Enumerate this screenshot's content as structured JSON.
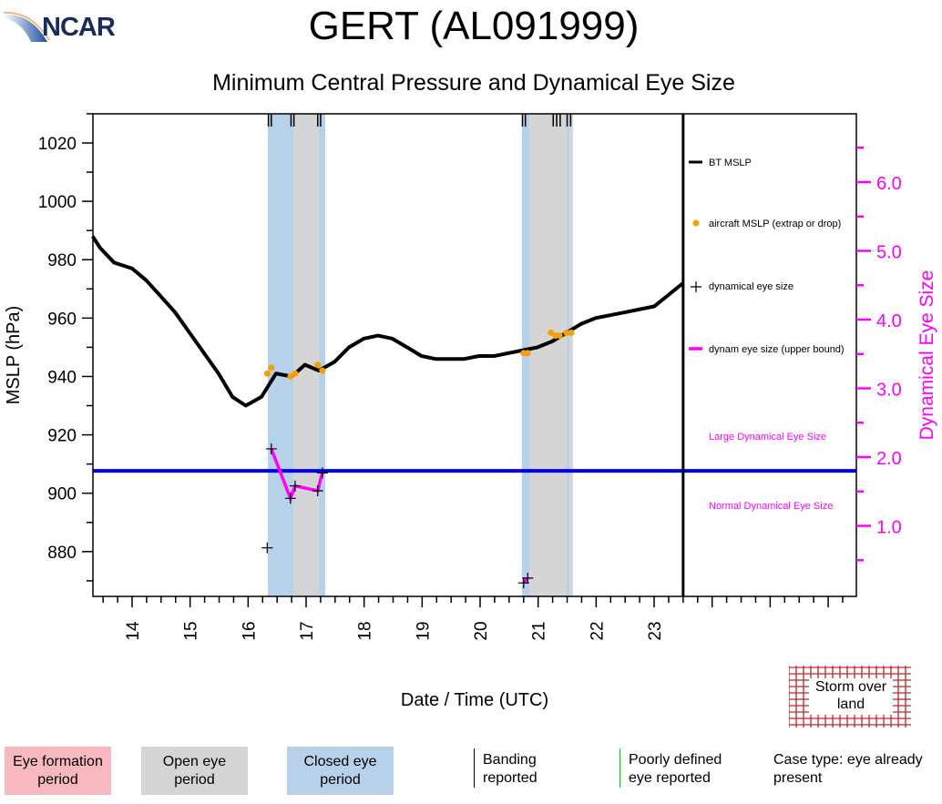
{
  "header": {
    "title": "GERT (AL091999)",
    "subtitle": "Minimum Central Pressure and Dynamical Eye Size",
    "logo_text": "NCAR"
  },
  "colors": {
    "bt": "#000000",
    "aircraft": "#f5a000",
    "eye_line": "#ff00ff",
    "threshold": "#0000ee",
    "closed": "#b8d1ea",
    "open": "#d5d5d5",
    "formation": "#f7b8c0",
    "land": "#c0272d",
    "banding": "#000000",
    "poorly": "#00cc00"
  },
  "chart_data": {
    "type": "line",
    "title": "Minimum Central Pressure and Dynamical Eye Size",
    "xlabel": "Date / Time (UTC)",
    "ylabel": "MSLP (hPa)",
    "y2label": "Dynamical Eye Size",
    "xlim": [
      13.33,
      26.48
    ],
    "ylim": [
      866,
      1030
    ],
    "y2lim": [
      0.0,
      7.1
    ],
    "x_ticks": [
      "14",
      "15",
      "16",
      "17",
      "18",
      "19",
      "20",
      "21",
      "22",
      "23"
    ],
    "y_ticks": [
      "880",
      "900",
      "920",
      "940",
      "960",
      "980",
      "1000",
      "1020"
    ],
    "y2_ticks": [
      "1.0",
      "2.0",
      "3.0",
      "4.0",
      "5.0",
      "6.0"
    ],
    "end_of_track_day": 23.5,
    "bt_mslp": {
      "name": "BT MSLP",
      "x": [
        13.32,
        13.45,
        13.69,
        14.0,
        14.24,
        14.47,
        14.74,
        14.99,
        15.24,
        15.49,
        15.73,
        15.96,
        16.23,
        16.48,
        16.75,
        16.98,
        17.22,
        17.49,
        17.74,
        18.0,
        18.24,
        18.48,
        18.74,
        18.99,
        19.23,
        19.48,
        19.73,
        19.98,
        20.24,
        20.49,
        20.74,
        20.99,
        21.24,
        21.49,
        21.74,
        21.99,
        22.5,
        23.0,
        23.5
      ],
      "y": [
        988,
        984,
        979,
        977,
        973,
        968,
        962,
        955,
        948,
        941,
        933,
        930,
        933,
        941,
        940,
        944,
        942,
        945,
        950,
        953,
        954,
        953,
        950,
        947,
        946,
        946,
        946,
        947,
        947,
        948,
        949,
        950,
        952,
        955,
        958,
        960,
        962,
        964,
        972
      ]
    },
    "aircraft_mslp": {
      "name": "aircraft MSLP (extrap or drop)",
      "x": [
        16.33,
        16.4,
        16.73,
        16.81,
        17.2,
        17.28,
        20.75,
        20.82,
        21.22,
        21.3,
        21.37,
        21.49,
        21.57
      ],
      "y": [
        941,
        943,
        940,
        941,
        944,
        942,
        948,
        948,
        955,
        954,
        954,
        955,
        955
      ]
    },
    "eye_size": {
      "name": "dynamical eye size",
      "x": [
        16.33,
        16.4,
        16.73,
        16.81,
        17.2,
        17.28,
        20.75,
        20.82
      ],
      "y": [
        0.68,
        2.12,
        1.4,
        1.58,
        1.51,
        1.77,
        0.17,
        0.24
      ]
    },
    "eye_size_upper": {
      "name": "dynam eye size (upper bound)",
      "segments": [
        {
          "x": [
            16.4,
            16.73,
            16.81,
            17.2,
            17.28
          ],
          "y": [
            2.12,
            1.4,
            1.58,
            1.51,
            1.77
          ]
        },
        {
          "x": [
            20.75,
            20.82
          ],
          "y": [
            0.17,
            0.24
          ]
        }
      ]
    },
    "threshold": {
      "value": 1.8,
      "above_label": "Large Dynamical Eye Size",
      "below_label": "Normal Dynamical Eye Size"
    },
    "periods": [
      {
        "type": "closed",
        "start": 16.34,
        "end": 16.78
      },
      {
        "type": "open",
        "start": 16.78,
        "end": 17.22
      },
      {
        "type": "closed",
        "start": 17.22,
        "end": 17.33
      },
      {
        "type": "closed",
        "start": 20.72,
        "end": 20.86
      },
      {
        "type": "open",
        "start": 20.86,
        "end": 21.49
      },
      {
        "type": "closed",
        "start": 21.49,
        "end": 21.54
      },
      {
        "type": "open",
        "start": 21.54,
        "end": 21.6
      }
    ],
    "banding_times": [
      16.35,
      16.4,
      16.74,
      16.79,
      17.2,
      17.25,
      20.73,
      20.78,
      21.26,
      21.32,
      21.38,
      21.5,
      21.56
    ]
  },
  "legend": {
    "bt": "BT MSLP",
    "aircraft": "aircraft MSLP (extrap or drop)",
    "eye": "dynamical eye size",
    "upper": "dynam eye size (upper bound)"
  },
  "bottom_legend": {
    "formation": "Eye formation period",
    "open": "Open eye period",
    "closed": "Closed eye period",
    "banding": "Banding reported",
    "poorly": "Poorly defined eye reported",
    "case_type": "Case type: eye already present",
    "land": "Storm over land"
  }
}
